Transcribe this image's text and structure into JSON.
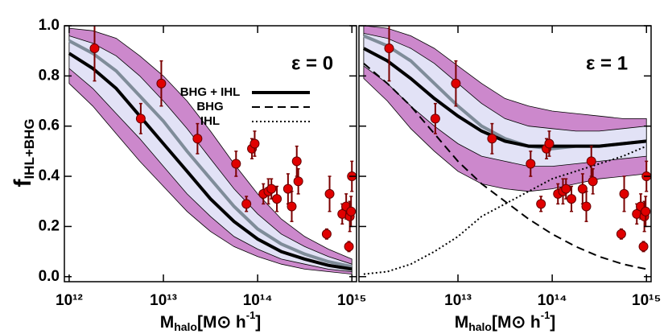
{
  "chart_data": [
    {
      "type": "line",
      "xscale": "log",
      "ylabel": {
        "text": "f",
        "sub": "IHL+BHG"
      },
      "xlabel": {
        "text": "M",
        "sub": "halo",
        "rest": "[M⊙ h",
        "sup": "-1",
        "end": "]"
      },
      "annotation": "ε = 0",
      "xlim": [
        890000000000.0,
        1120000000000000.0
      ],
      "xticks": [
        {
          "value": 1000000000000.0,
          "label": "10¹²"
        },
        {
          "value": 10000000000000.0,
          "label": "10¹³"
        },
        {
          "value": 100000000000000.0,
          "label": "10¹⁴"
        },
        {
          "value": 1000000000000000.0,
          "label": "10¹⁵"
        }
      ],
      "ylim": [
        -0.02,
        1.0
      ],
      "yticks": [
        {
          "value": 0,
          "label": "0.0"
        },
        0.2,
        0.4,
        0.6,
        0.8,
        {
          "value": 1,
          "label": "1.0"
        }
      ],
      "x": [
        1000000000000.0,
        1780000000000.0,
        3160000000000.0,
        5620000000000.0,
        10000000000000.0,
        17800000000000.0,
        31600000000000.0,
        56200000000000.0,
        100000000000000.0,
        178000000000000.0,
        316000000000000.0,
        562000000000000.0,
        1000000000000000.0
      ],
      "bands": [
        {
          "color": "#cc88cc",
          "upper": [
            0.99,
            0.98,
            0.95,
            0.88,
            0.8,
            0.7,
            0.58,
            0.45,
            0.33,
            0.23,
            0.16,
            0.11,
            0.07
          ],
          "lower": [
            0.77,
            0.68,
            0.57,
            0.46,
            0.36,
            0.26,
            0.18,
            0.12,
            0.08,
            0.05,
            0.03,
            0.02,
            0.01
          ]
        },
        {
          "color": "#e2e2f6",
          "upper": [
            0.96,
            0.93,
            0.88,
            0.8,
            0.7,
            0.59,
            0.47,
            0.35,
            0.25,
            0.17,
            0.12,
            0.08,
            0.05
          ],
          "lower": [
            0.83,
            0.75,
            0.65,
            0.55,
            0.44,
            0.33,
            0.24,
            0.16,
            0.11,
            0.07,
            0.05,
            0.03,
            0.02
          ]
        }
      ],
      "series": [
        {
          "color": "#7f8c99",
          "dash": "solid",
          "width": 4,
          "values": [
            0.94,
            0.89,
            0.82,
            0.72,
            0.62,
            0.5,
            0.39,
            0.28,
            0.19,
            0.13,
            0.09,
            0.06,
            0.04
          ]
        },
        {
          "color": "#000000",
          "dash": "solid",
          "width": 4,
          "values": [
            0.89,
            0.83,
            0.75,
            0.64,
            0.53,
            0.42,
            0.31,
            0.22,
            0.15,
            0.1,
            0.07,
            0.045,
            0.03
          ]
        }
      ],
      "points": {
        "color": "#e00000",
        "error_color": "#7a0000",
        "x": [
          1860000000000.0,
          5750000000000.0,
          9500000000000.0,
          23000000000000.0,
          59000000000000.0,
          76000000000000.0,
          87000000000000.0,
          93000000000000.0,
          115000000000000.0,
          130000000000000.0,
          140000000000000.0,
          160000000000000.0,
          210000000000000.0,
          230000000000000.0,
          260000000000000.0,
          270000000000000.0,
          540000000000000.0,
          580000000000000.0,
          790000000000000.0,
          870000000000000.0,
          930000000000000.0,
          950000000000000.0,
          980000000000000.0,
          1000000000000000.0
        ],
        "values": [
          0.91,
          0.63,
          0.77,
          0.55,
          0.45,
          0.29,
          0.51,
          0.53,
          0.33,
          0.34,
          0.35,
          0.31,
          0.35,
          0.28,
          0.46,
          0.38,
          0.17,
          0.33,
          0.25,
          0.28,
          0.12,
          0.24,
          0.26,
          0.4
        ],
        "errors": [
          0.13,
          0.06,
          0.09,
          0.06,
          0.05,
          0.03,
          0.04,
          0.05,
          0.04,
          0.05,
          0.04,
          0.05,
          0.06,
          0.06,
          0.06,
          0.05,
          0.02,
          0.07,
          0.04,
          0.05,
          0.02,
          0.06,
          0.06,
          0.06
        ]
      }
    },
    {
      "type": "line",
      "xscale": "log",
      "xlabel": {
        "text": "M",
        "sub": "halo",
        "rest": "[M⊙ h",
        "sup": "-1",
        "end": "]"
      },
      "annotation": "ε = 1",
      "xlim": [
        890000000000.0,
        1120000000000000.0
      ],
      "xticks": [
        {
          "value": 10000000000000.0,
          "label": "10¹³"
        },
        {
          "value": 100000000000000.0,
          "label": "10¹⁴"
        },
        {
          "value": 1000000000000000.0,
          "label": "10¹⁵"
        }
      ],
      "ylim": [
        -0.02,
        1.0
      ],
      "x": [
        1000000000000.0,
        1780000000000.0,
        3160000000000.0,
        5620000000000.0,
        10000000000000.0,
        17800000000000.0,
        31600000000000.0,
        56200000000000.0,
        100000000000000.0,
        178000000000000.0,
        316000000000000.0,
        562000000000000.0,
        1000000000000000.0
      ],
      "bands": [
        {
          "color": "#cc88cc",
          "upper": [
            1.0,
            0.99,
            0.96,
            0.91,
            0.84,
            0.77,
            0.71,
            0.68,
            0.66,
            0.65,
            0.64,
            0.63,
            0.63
          ],
          "lower": [
            0.79,
            0.7,
            0.59,
            0.5,
            0.42,
            0.37,
            0.35,
            0.34,
            0.35,
            0.37,
            0.39,
            0.4,
            0.41
          ]
        },
        {
          "color": "#e2e2f6",
          "upper": [
            0.97,
            0.95,
            0.91,
            0.85,
            0.77,
            0.69,
            0.63,
            0.6,
            0.59,
            0.58,
            0.58,
            0.59,
            0.6
          ],
          "lower": [
            0.84,
            0.77,
            0.68,
            0.6,
            0.53,
            0.48,
            0.46,
            0.44,
            0.44,
            0.45,
            0.46,
            0.47,
            0.48
          ]
        }
      ],
      "series": [
        {
          "color": "#7f8c99",
          "dash": "solid",
          "width": 4,
          "values": [
            0.96,
            0.92,
            0.86,
            0.77,
            0.68,
            0.6,
            0.55,
            0.52,
            0.51,
            0.52,
            0.52,
            0.53,
            0.54
          ]
        },
        {
          "name": "BHG + IHL",
          "color": "#000000",
          "dash": "solid",
          "width": 4,
          "values": [
            0.91,
            0.86,
            0.79,
            0.71,
            0.64,
            0.58,
            0.54,
            0.52,
            0.52,
            0.52,
            0.52,
            0.53,
            0.54
          ]
        },
        {
          "name": "BHG",
          "color": "#000000",
          "dash": "dashed",
          "width": 2,
          "values": [
            0.85,
            0.77,
            0.68,
            0.57,
            0.46,
            0.37,
            0.3,
            0.23,
            0.17,
            0.12,
            0.08,
            0.05,
            0.03
          ]
        },
        {
          "name": "IHL",
          "color": "#000000",
          "dash": "dotted",
          "width": 2,
          "values": [
            0.01,
            0.02,
            0.05,
            0.1,
            0.16,
            0.24,
            0.29,
            0.34,
            0.39,
            0.42,
            0.45,
            0.48,
            0.52
          ]
        }
      ],
      "points": {
        "color": "#e00000",
        "error_color": "#7a0000",
        "x": [
          1860000000000.0,
          5750000000000.0,
          9500000000000.0,
          23000000000000.0,
          59000000000000.0,
          76000000000000.0,
          87000000000000.0,
          93000000000000.0,
          115000000000000.0,
          130000000000000.0,
          140000000000000.0,
          160000000000000.0,
          210000000000000.0,
          230000000000000.0,
          260000000000000.0,
          270000000000000.0,
          540000000000000.0,
          580000000000000.0,
          790000000000000.0,
          870000000000000.0,
          930000000000000.0,
          950000000000000.0,
          980000000000000.0,
          1000000000000000.0
        ],
        "values": [
          0.91,
          0.63,
          0.77,
          0.55,
          0.45,
          0.29,
          0.51,
          0.53,
          0.33,
          0.34,
          0.35,
          0.31,
          0.35,
          0.28,
          0.46,
          0.38,
          0.17,
          0.33,
          0.25,
          0.28,
          0.12,
          0.24,
          0.26,
          0.4
        ],
        "errors": [
          0.13,
          0.06,
          0.09,
          0.06,
          0.05,
          0.03,
          0.04,
          0.05,
          0.04,
          0.05,
          0.04,
          0.05,
          0.06,
          0.06,
          0.06,
          0.05,
          0.02,
          0.07,
          0.04,
          0.05,
          0.02,
          0.06,
          0.06,
          0.06
        ]
      }
    }
  ]
}
